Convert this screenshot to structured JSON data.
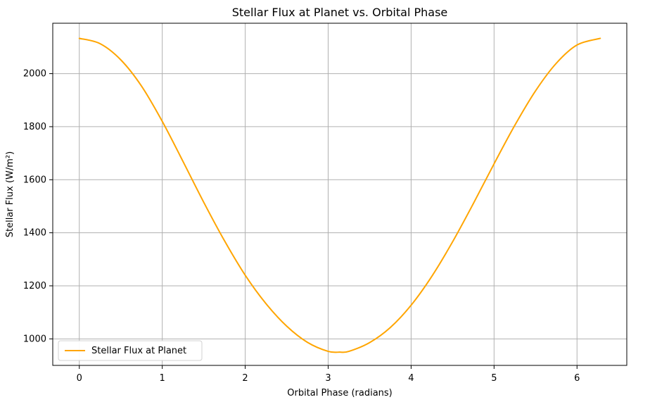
{
  "chart_data": {
    "type": "line",
    "title": "Stellar Flux at Planet vs. Orbital Phase",
    "xlabel": "Orbital Phase (radians)",
    "ylabel": "Stellar Flux (W/m²)",
    "xlim": [
      -0.32,
      6.6
    ],
    "ylim": [
      900,
      2190
    ],
    "x_ticks": [
      0,
      1,
      2,
      3,
      4,
      5,
      6
    ],
    "y_ticks": [
      1000,
      1200,
      1400,
      1600,
      1800,
      2000
    ],
    "x_tick_labels": [
      "0",
      "1",
      "2",
      "3",
      "4",
      "5",
      "6"
    ],
    "y_tick_labels": [
      "1000",
      "1200",
      "1400",
      "1600",
      "1800",
      "2000"
    ],
    "grid": true,
    "legend_position": "lower-left",
    "series": [
      {
        "name": "Stellar Flux at Planet",
        "color": "#ffa500",
        "x": [
          0,
          0.25,
          0.5,
          0.75,
          1,
          1.25,
          1.5,
          1.75,
          2,
          2.25,
          2.5,
          2.75,
          3,
          3.14,
          3.25,
          3.5,
          3.75,
          4,
          4.25,
          4.5,
          4.75,
          5,
          5.25,
          5.5,
          5.75,
          6,
          6.28
        ],
        "y": [
          2133,
          2113,
          2052,
          1953,
          1820,
          1669,
          1515,
          1370,
          1240,
          1133,
          1048,
          987,
          953,
          950,
          953,
          986,
          1043,
          1127,
          1236,
          1366,
          1510,
          1660,
          1805,
          1935,
          2039,
          2108,
          2133
        ]
      }
    ]
  }
}
